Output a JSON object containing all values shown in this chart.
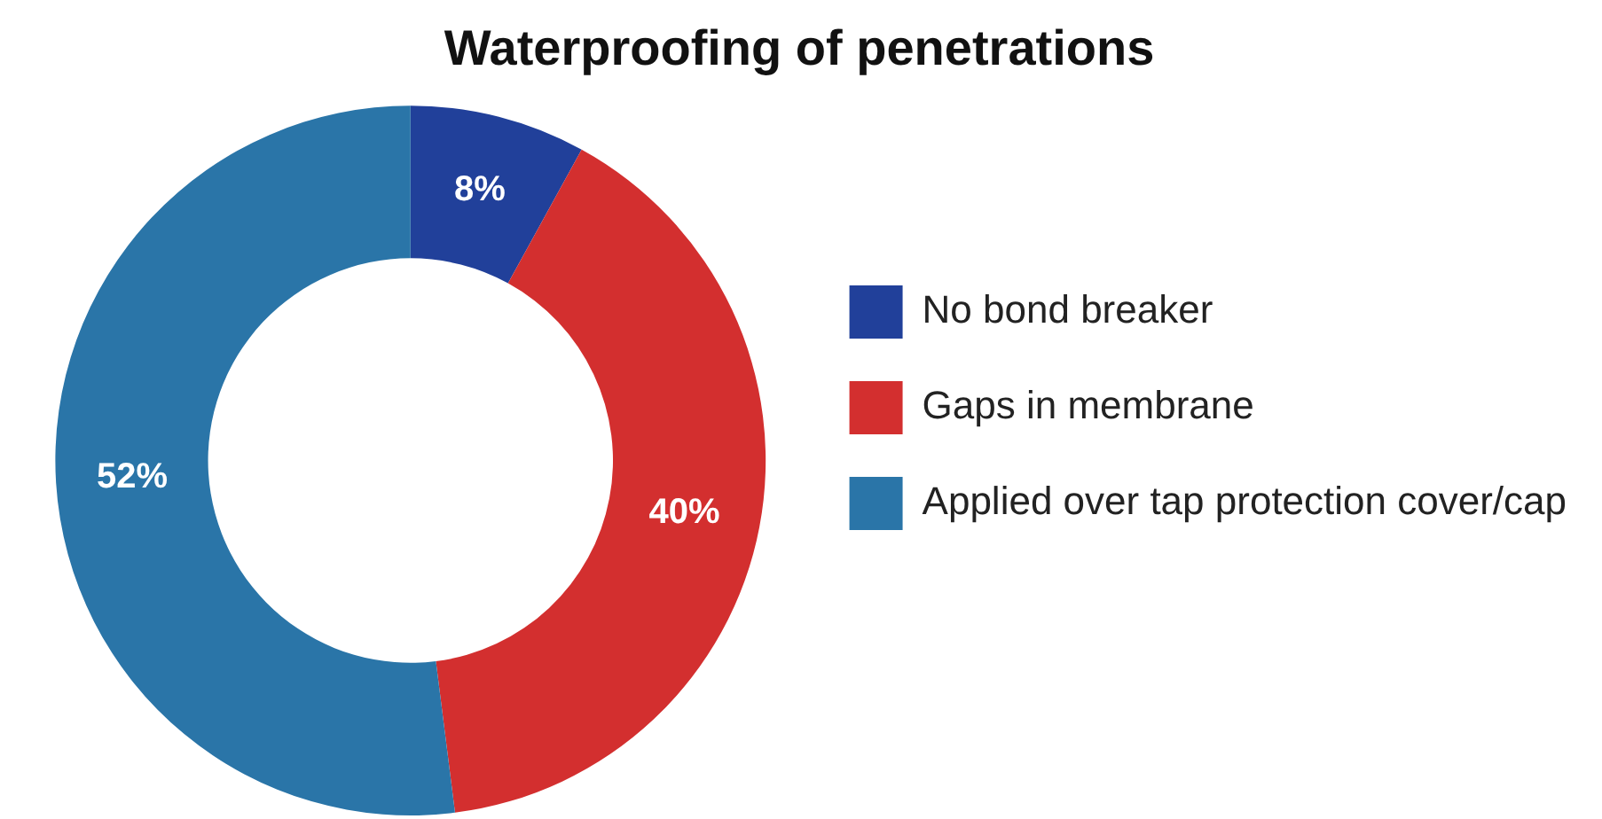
{
  "chart_data": {
    "type": "donut",
    "title": "Waterproofing of penetrations",
    "categories": [
      "No bond breaker",
      "Gaps in membrane",
      "Applied over tap protection cover/cap"
    ],
    "values": [
      8,
      40,
      52
    ],
    "colors": [
      "#21409a",
      "#d32f2f",
      "#2a75a8"
    ],
    "value_labels": [
      "8%",
      "40%",
      "52%"
    ],
    "legend": "right"
  }
}
